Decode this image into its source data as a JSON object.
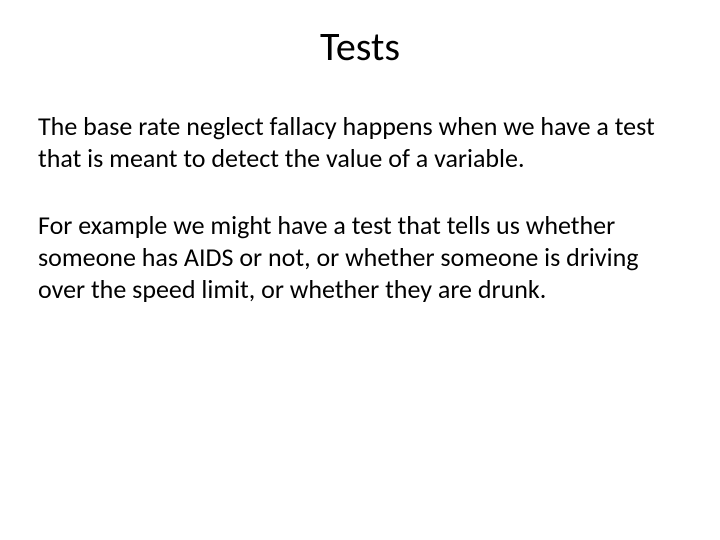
{
  "slide": {
    "title": "Tests",
    "paragraph1": "The base rate neglect fallacy happens when we have a test that is meant to detect the value of a variable.",
    "paragraph2": "For example we might have a test that tells us whether someone has AIDS or not, or whether someone is driving over the speed limit, or whether they are drunk."
  },
  "styling": {
    "background_color": "#ffffff",
    "text_color": "#000000",
    "title_fontsize": 40,
    "body_fontsize": 26,
    "font_family": "Calibri"
  }
}
